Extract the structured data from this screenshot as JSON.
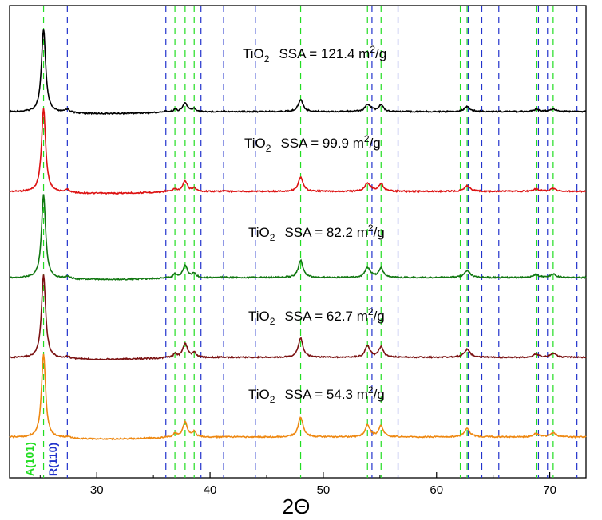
{
  "chart_data": {
    "type": "line",
    "title": "",
    "xlabel": "2Θ",
    "ylabel": "",
    "xlim": [
      22.3,
      73.2
    ],
    "xticks": [
      30,
      40,
      50,
      60,
      70
    ],
    "grid": false,
    "reference_lines": {
      "anatase": {
        "label": "A(101)",
        "color": "#22dd22",
        "positions": [
          25.3,
          36.9,
          37.8,
          38.6,
          48.0,
          53.9,
          55.1,
          62.1,
          62.7,
          68.8,
          70.3
        ]
      },
      "rutile": {
        "label": "R(110)",
        "color": "#2233cc",
        "positions": [
          27.4,
          36.1,
          39.2,
          41.2,
          44.0,
          54.3,
          56.6,
          62.8,
          64.0,
          65.5,
          69.0,
          69.8,
          72.4
        ]
      }
    },
    "series": [
      {
        "name": "SSA = 121.4 m2/g",
        "material": "TiO",
        "subscript": "2",
        "ssa_prefix": "SSA = ",
        "ssa_value": "121.4",
        "unit_m": " m",
        "unit_exp": "2",
        "unit_tail": "/g",
        "color": "#000000",
        "peak_rel": 1.0,
        "sec_rel": 0.6,
        "rutile_rel": 0.12
      },
      {
        "name": "SSA = 99.9 m2/g",
        "material": "TiO",
        "subscript": "2",
        "ssa_prefix": "SSA = ",
        "ssa_value": "99.9",
        "unit_m": " m",
        "unit_exp": "2",
        "unit_tail": "/g",
        "color": "#dd1111",
        "peak_rel": 1.0,
        "sec_rel": 0.7,
        "rutile_rel": 0.1
      },
      {
        "name": "SSA = 82.2 m2/g",
        "material": "TiO",
        "subscript": "2",
        "ssa_prefix": "SSA = ",
        "ssa_value": "82.2",
        "unit_m": " m",
        "unit_exp": "2",
        "unit_tail": "/g",
        "color": "#117711",
        "peak_rel": 1.0,
        "sec_rel": 0.85,
        "rutile_rel": 0.08
      },
      {
        "name": "SSA = 62.7 m2/g",
        "material": "TiO",
        "subscript": "2",
        "ssa_prefix": "SSA = ",
        "ssa_value": "62.7",
        "unit_m": " m",
        "unit_exp": "2",
        "unit_tail": "/g",
        "color": "#7a1111",
        "peak_rel": 1.0,
        "sec_rel": 0.95,
        "rutile_rel": 0.06
      },
      {
        "name": "SSA = 54.3 m2/g",
        "material": "TiO",
        "subscript": "2",
        "ssa_prefix": "SSA = ",
        "ssa_value": "54.3",
        "unit_m": " m",
        "unit_exp": "2",
        "unit_tail": "/g",
        "color": "#ee8811",
        "peak_rel": 1.0,
        "sec_rel": 1.0,
        "rutile_rel": 0.05
      }
    ],
    "anatase_peaks": [
      {
        "x": 25.3,
        "h": 1.0,
        "w": 0.22
      },
      {
        "x": 36.9,
        "h": 0.05,
        "w": 0.18
      },
      {
        "x": 37.8,
        "h": 0.18,
        "w": 0.25
      },
      {
        "x": 38.6,
        "h": 0.06,
        "w": 0.2
      },
      {
        "x": 48.0,
        "h": 0.24,
        "w": 0.25
      },
      {
        "x": 53.9,
        "h": 0.14,
        "w": 0.25
      },
      {
        "x": 55.1,
        "h": 0.13,
        "w": 0.25
      },
      {
        "x": 62.7,
        "h": 0.1,
        "w": 0.3
      },
      {
        "x": 68.8,
        "h": 0.04,
        "w": 0.3
      },
      {
        "x": 70.3,
        "h": 0.05,
        "w": 0.3
      }
    ],
    "rutile_peaks": [
      {
        "x": 27.4,
        "h": 0.35,
        "w": 0.25
      },
      {
        "x": 36.1,
        "h": 0.1,
        "w": 0.25
      },
      {
        "x": 41.2,
        "h": 0.05,
        "w": 0.25
      },
      {
        "x": 54.3,
        "h": 0.15,
        "w": 0.25
      }
    ]
  }
}
